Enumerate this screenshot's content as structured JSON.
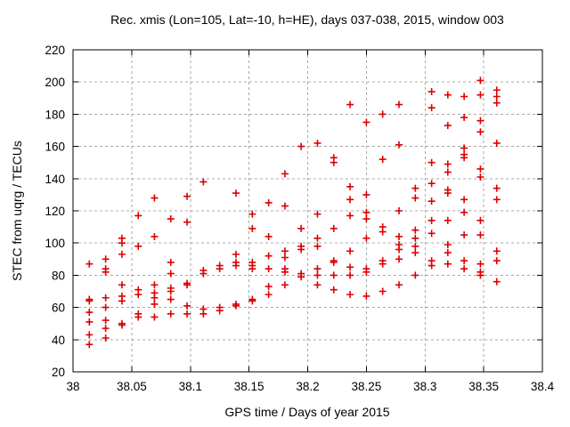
{
  "chart_data": {
    "type": "scatter",
    "title": "Rec. xmis (Lon=105, Lat=-10, h=HE), days 037-038, 2015, window 003",
    "xlabel": "GPS time / Days of year 2015",
    "ylabel": "STEC from uqrg / TECUs",
    "xlim": [
      38,
      38.4
    ],
    "ylim": [
      20,
      220
    ],
    "xticks": [
      38,
      38.05,
      38.1,
      38.15,
      38.2,
      38.25,
      38.3,
      38.35,
      38.4
    ],
    "xtick_labels": [
      "38",
      "38.05",
      "38.1",
      "38.15",
      "38.2",
      "38.25",
      "38.3",
      "38.35",
      "38.4"
    ],
    "yticks": [
      20,
      40,
      60,
      80,
      100,
      120,
      140,
      160,
      180,
      200,
      220
    ],
    "ytick_labels": [
      "20",
      "40",
      "60",
      "80",
      "100",
      "120",
      "140",
      "160",
      "180",
      "200",
      "220"
    ],
    "grid": true,
    "grid_style": "dashed",
    "legend": "none",
    "marker": {
      "shape": "plus",
      "color": "#dd0000",
      "size": 9,
      "stroke_width": 1.6
    },
    "colors": {
      "background": "#ffffff",
      "border": "#000000",
      "grid": "#a8a8a8",
      "text": "#000000"
    },
    "series": [
      {
        "name": "STEC from uqrg",
        "columns": [
          {
            "x": 38.0139,
            "y": [
              87,
              65,
              64,
              57,
              51,
              43,
              37
            ]
          },
          {
            "x": 38.0278,
            "y": [
              90,
              84,
              82,
              66,
              60,
              52,
              47,
              41
            ]
          },
          {
            "x": 38.0417,
            "y": [
              103,
              100,
              93,
              74,
              67,
              64,
              50,
              49
            ]
          },
          {
            "x": 38.0556,
            "y": [
              117,
              98,
              71,
              68,
              56,
              54
            ]
          },
          {
            "x": 38.0694,
            "y": [
              128,
              104,
              74,
              69,
              66,
              62,
              54
            ]
          },
          {
            "x": 38.0833,
            "y": [
              115,
              88,
              81,
              72,
              70,
              65,
              56
            ]
          },
          {
            "x": 38.0972,
            "y": [
              129,
              113,
              75,
              74,
              61,
              56
            ]
          },
          {
            "x": 38.1111,
            "y": [
              138,
              83,
              81,
              59,
              56
            ]
          },
          {
            "x": 38.125,
            "y": [
              86,
              84,
              60,
              58
            ]
          },
          {
            "x": 38.1389,
            "y": [
              131,
              93,
              88,
              86,
              62,
              61
            ]
          },
          {
            "x": 38.1528,
            "y": [
              118,
              109,
              88,
              86,
              84,
              65,
              64
            ]
          },
          {
            "x": 38.1667,
            "y": [
              125,
              104,
              92,
              84,
              73,
              68
            ]
          },
          {
            "x": 38.1806,
            "y": [
              143,
              123,
              95,
              91,
              84,
              82,
              74
            ]
          },
          {
            "x": 38.1944,
            "y": [
              160,
              109,
              98,
              96,
              81,
              79
            ]
          },
          {
            "x": 38.2083,
            "y": [
              162,
              118,
              103,
              98,
              84,
              80,
              74
            ]
          },
          {
            "x": 38.2222,
            "y": [
              153,
              150,
              109,
              89,
              88,
              80,
              71
            ]
          },
          {
            "x": 38.2361,
            "y": [
              186,
              135,
              127,
              117,
              95,
              85,
              80,
              68
            ]
          },
          {
            "x": 38.25,
            "y": [
              175,
              130,
              119,
              115,
              103,
              84,
              82,
              67
            ]
          },
          {
            "x": 38.2639,
            "y": [
              180,
              152,
              110,
              107,
              89,
              87,
              70
            ]
          },
          {
            "x": 38.2778,
            "y": [
              186,
              161,
              120,
              104,
              99,
              96,
              90,
              74
            ]
          },
          {
            "x": 38.2917,
            "y": [
              134,
              128,
              108,
              103,
              98,
              94,
              80
            ]
          },
          {
            "x": 38.3056,
            "y": [
              194,
              184,
              150,
              137,
              126,
              114,
              106,
              89,
              86
            ]
          },
          {
            "x": 38.3194,
            "y": [
              192,
              173,
              149,
              144,
              133,
              131,
              114,
              99,
              94,
              87
            ]
          },
          {
            "x": 38.3333,
            "y": [
              191,
              178,
              159,
              155,
              153,
              127,
              119,
              105,
              89,
              84
            ]
          },
          {
            "x": 38.3472,
            "y": [
              201,
              192,
              176,
              169,
              146,
              141,
              114,
              105,
              87,
              82,
              80
            ]
          },
          {
            "x": 38.3611,
            "y": [
              195,
              191,
              187,
              162,
              134,
              127,
              95,
              89,
              76
            ]
          }
        ]
      }
    ]
  }
}
